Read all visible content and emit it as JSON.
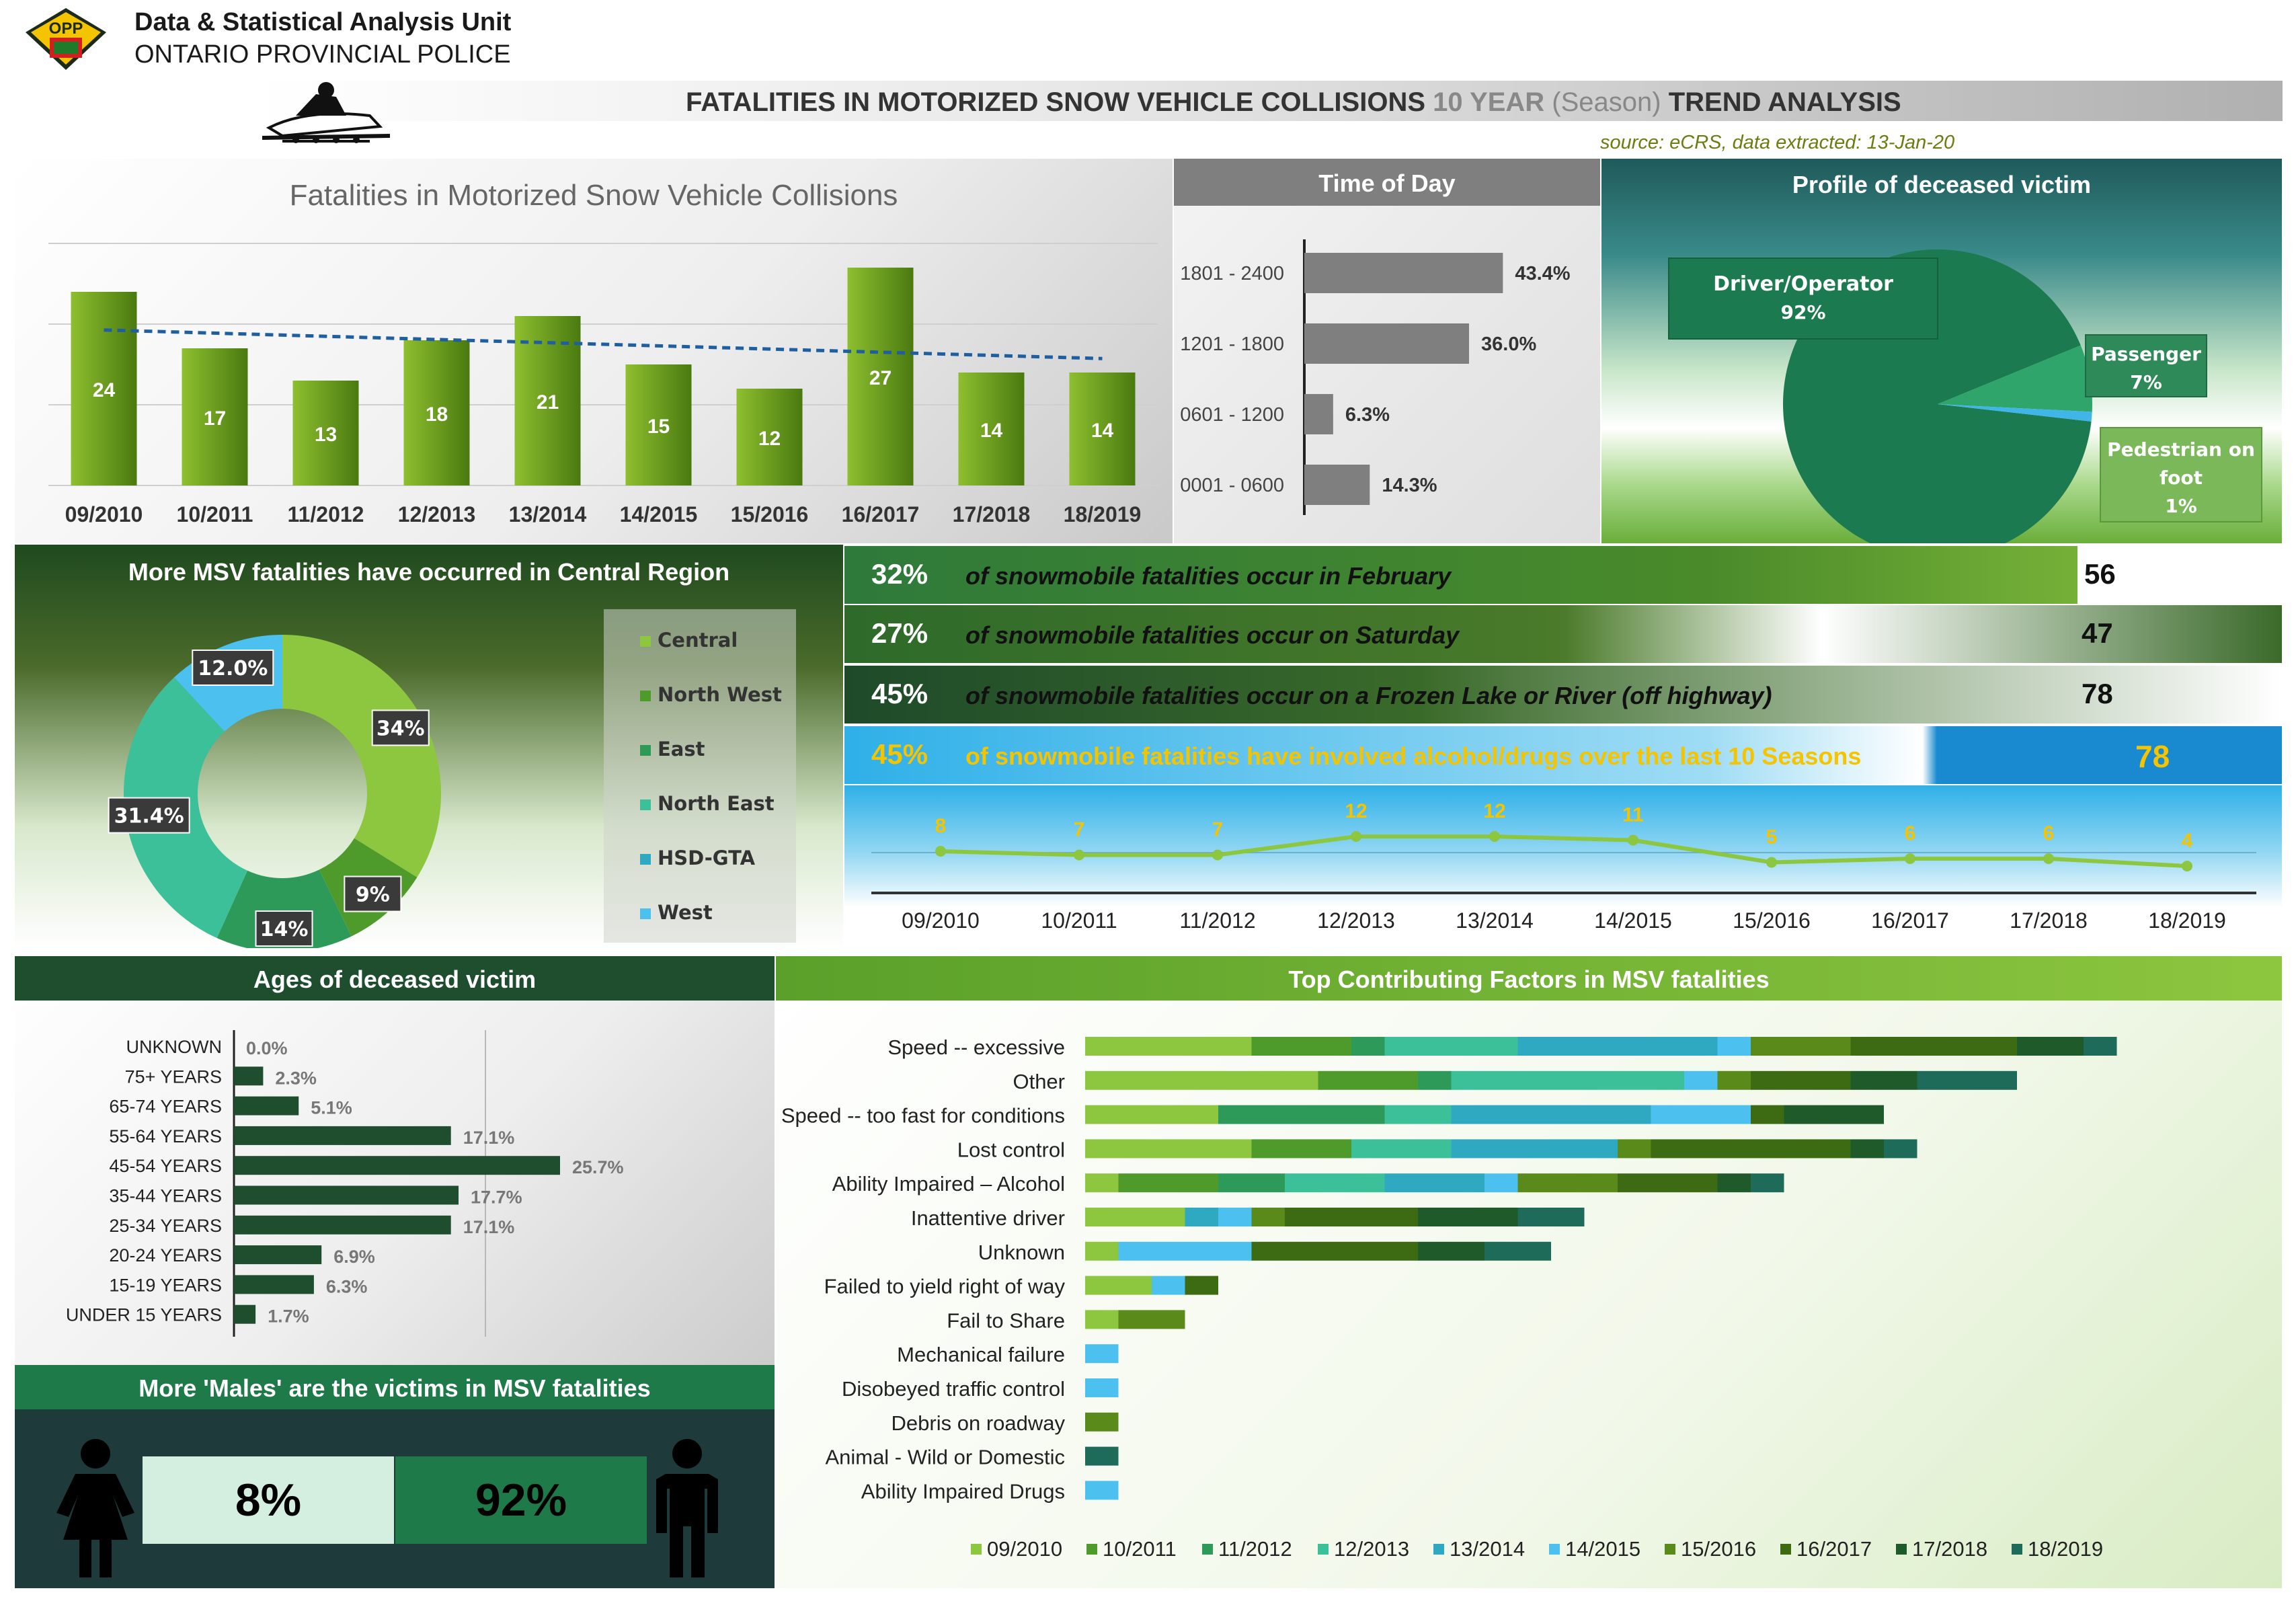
{
  "header": {
    "unit": "Data & Statistical Analysis Unit",
    "org": "ONTARIO PROVINCIAL POLICE",
    "logo_text": "OPP",
    "title_part1": "FATALITIES IN MOTORIZED SNOW VEHICLE COLLISIONS ",
    "title_part2": "10 YEAR",
    "title_part3": " (Season)",
    "title_part4": " TREND ANALYSIS",
    "source": "source: eCRS,  data extracted:    13-Jan-20"
  },
  "colors": {
    "dark_green": "#1f4e2f",
    "green": "#6a9a1f",
    "light_green": "#9ccb3b",
    "teal": "#1f6b5a",
    "blue": "#3fb5e8",
    "grey": "#7f7f7f"
  },
  "chart_data": [
    {
      "id": "yearly",
      "type": "bar",
      "title": "Fatalities in Motorized Snow Vehicle Collisions",
      "categories": [
        "09/2010",
        "10/2011",
        "11/2012",
        "12/2013",
        "13/2014",
        "14/2015",
        "15/2016",
        "16/2017",
        "17/2018",
        "18/2019"
      ],
      "values": [
        24,
        17,
        13,
        18,
        21,
        15,
        12,
        27,
        14,
        14
      ],
      "labels": [
        "24",
        "17",
        "13",
        "18",
        "21",
        "15",
        "12",
        "27",
        "14",
        "14"
      ],
      "trendline": true,
      "ylim": [
        0,
        30
      ],
      "grid": true
    },
    {
      "id": "time_of_day",
      "type": "bar",
      "orientation": "horizontal",
      "title": "Time of Day",
      "categories": [
        "1801 - 2400",
        "1201 - 1800",
        "0601 - 1200",
        "0001 - 0600"
      ],
      "values": [
        43.4,
        36.0,
        6.3,
        14.3
      ],
      "labels": [
        "43.4%",
        "36.0%",
        "6.3%",
        "14.3%"
      ],
      "xlim": [
        0,
        55
      ]
    },
    {
      "id": "victim_profile",
      "type": "pie",
      "title": "Profile of deceased victim",
      "slices": [
        {
          "name": "Driver/Operator",
          "value": 92,
          "label": "92%",
          "color": "#1b7a4f"
        },
        {
          "name": "Passenger",
          "value": 7,
          "label": "7%",
          "color": "#2fa56b"
        },
        {
          "name": "Pedestrian on foot",
          "value": 1,
          "label": "1%",
          "color": "#3fb5e8"
        }
      ]
    },
    {
      "id": "region",
      "type": "pie",
      "donut": true,
      "title": "More MSV fatalities have occurred in Central Region",
      "legend_position": "right",
      "slices": [
        {
          "name": "Central",
          "value": 34,
          "label": "34%",
          "color": "#8dc63f"
        },
        {
          "name": "North West",
          "value": 9,
          "label": "9%",
          "color": "#4e9a2a"
        },
        {
          "name": "East",
          "value": 14,
          "label": "14%",
          "color": "#2e9a5a"
        },
        {
          "name": "North East",
          "value": 31.4,
          "label": "31.4%",
          "color": "#3cc09a"
        },
        {
          "name": "HSD-GTA",
          "value": 0,
          "label": "",
          "color": "#2fa8c2"
        },
        {
          "name": "West",
          "value": 12.0,
          "label": "12.0%",
          "color": "#4cc0ef"
        }
      ]
    },
    {
      "id": "alcohol_trend",
      "type": "line",
      "categories": [
        "09/2010",
        "10/2011",
        "11/2012",
        "12/2013",
        "13/2014",
        "14/2015",
        "15/2016",
        "16/2017",
        "17/2018",
        "18/2019"
      ],
      "values": [
        8,
        7,
        7,
        12,
        12,
        11,
        5,
        6,
        6,
        4
      ],
      "labels": [
        "8",
        "7",
        "7",
        "12",
        "12",
        "11",
        "5",
        "6",
        "6",
        "4"
      ],
      "ylim": [
        0,
        40
      ]
    },
    {
      "id": "ages",
      "type": "bar",
      "orientation": "horizontal",
      "title": "Ages of deceased victim",
      "categories": [
        "UNKNOWN",
        "75+ YEARS",
        "65-74 YEARS",
        "55-64 YEARS",
        "45-54 YEARS",
        "35-44 YEARS",
        "25-34 YEARS",
        "20-24 YEARS",
        "15-19 YEARS",
        "UNDER 15 YEARS"
      ],
      "values": [
        0.0,
        2.3,
        5.1,
        17.1,
        25.7,
        17.7,
        17.1,
        6.9,
        6.3,
        1.7
      ],
      "labels": [
        "0.0%",
        "2.3%",
        "5.1%",
        "17.1%",
        "25.7%",
        "17.7%",
        "17.1%",
        "6.9%",
        "6.3%",
        "1.7%"
      ],
      "xlim": [
        0,
        27.5
      ]
    },
    {
      "id": "factors",
      "type": "bar",
      "orientation": "horizontal",
      "stacked": true,
      "title": "Top Contributing Factors in MSV fatalities",
      "legend_position": "bottom",
      "categories": [
        "Speed -- excessive",
        "Other",
        "Speed -- too fast for conditions",
        "Lost control",
        "Ability Impaired – Alcohol",
        "Inattentive driver",
        "Unknown",
        "Failed to yield right of way",
        "Fail to Share",
        "Mechanical failure",
        "Disobeyed traffic control",
        "Debris on roadway",
        "Animal - Wild or Domestic",
        "Ability Impaired Drugs"
      ],
      "series": [
        {
          "name": "09/2010",
          "color": "#8dc63f",
          "values": [
            5,
            7,
            4,
            5,
            1,
            3,
            1,
            2,
            1,
            0,
            0,
            0,
            0,
            0
          ]
        },
        {
          "name": "10/2011",
          "color": "#4e9a2a",
          "values": [
            3,
            3,
            0,
            3,
            3,
            0,
            0,
            0,
            0,
            0,
            0,
            0,
            0,
            0
          ]
        },
        {
          "name": "11/2012",
          "color": "#2e9a5a",
          "values": [
            1,
            1,
            5,
            0,
            2,
            0,
            0,
            0,
            0,
            0,
            0,
            0,
            0,
            0
          ]
        },
        {
          "name": "12/2013",
          "color": "#3cc09a",
          "values": [
            4,
            7,
            2,
            3,
            3,
            0,
            0,
            0,
            0,
            0,
            0,
            0,
            0,
            0
          ]
        },
        {
          "name": "13/2014",
          "color": "#2fa8c2",
          "values": [
            6,
            0,
            6,
            5,
            3,
            1,
            0,
            0,
            0,
            0,
            0,
            0,
            0,
            0
          ]
        },
        {
          "name": "14/2015",
          "color": "#4cc0ef",
          "values": [
            1,
            1,
            3,
            0,
            1,
            1,
            4,
            1,
            0,
            1,
            1,
            0,
            0,
            1
          ]
        },
        {
          "name": "15/2016",
          "color": "#5a8a1a",
          "values": [
            3,
            1,
            0,
            1,
            3,
            1,
            0,
            0,
            2,
            0,
            0,
            1,
            0,
            0
          ]
        },
        {
          "name": "16/2017",
          "color": "#3d6b14",
          "values": [
            5,
            3,
            1,
            6,
            3,
            4,
            5,
            1,
            0,
            0,
            0,
            0,
            0,
            0
          ]
        },
        {
          "name": "17/2018",
          "color": "#1f5a2a",
          "values": [
            2,
            2,
            3,
            1,
            1,
            3,
            2,
            0,
            0,
            0,
            0,
            0,
            0,
            0
          ]
        },
        {
          "name": "18/2019",
          "color": "#1f6b5a",
          "values": [
            1,
            3,
            0,
            1,
            1,
            2,
            2,
            0,
            0,
            0,
            0,
            0,
            1,
            0
          ]
        }
      ]
    }
  ],
  "facts": [
    {
      "pct": "32%",
      "text": "of snowmobile fatalities occur in February",
      "num": "56"
    },
    {
      "pct": "27%",
      "text": "of snowmobile fatalities occur on Saturday",
      "num": "47"
    },
    {
      "pct": "45%",
      "text": "of snowmobile fatalities occur on a Frozen Lake or River (off highway)",
      "num": "78"
    },
    {
      "pct": "45%",
      "text": "of snowmobile fatalities have involved alcohol/drugs over the last 10 Seasons",
      "num": "78"
    }
  ],
  "gender": {
    "title": "More 'Males' are the victims in MSV fatalities",
    "female_pct": "8%",
    "male_pct": "92%",
    "female_value": 8,
    "male_value": 92,
    "female_icon": "female-person-icon",
    "male_icon": "male-person-icon"
  }
}
